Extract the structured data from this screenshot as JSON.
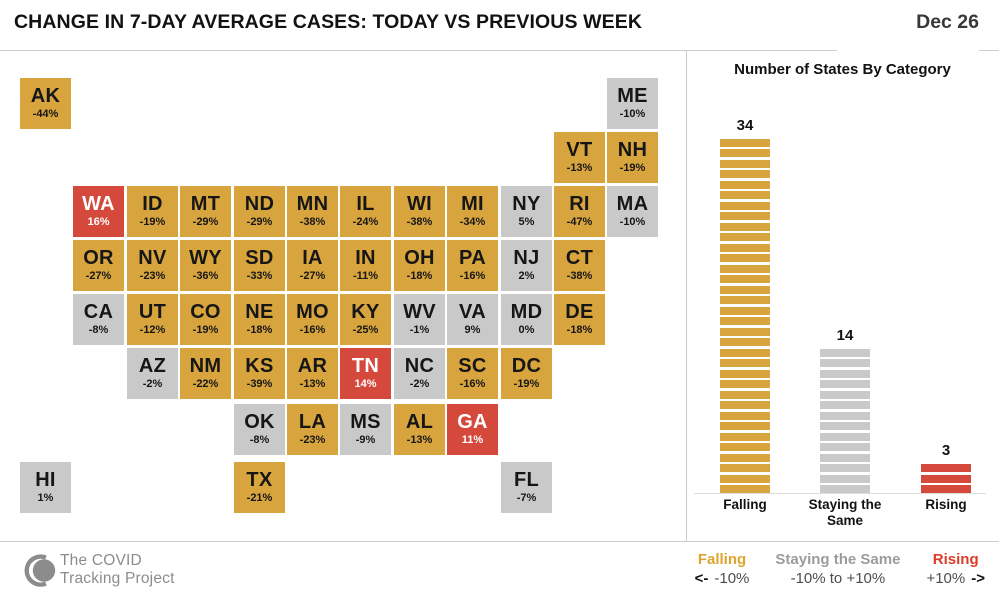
{
  "header": {
    "title": "CHANGE IN 7-DAY AVERAGE CASES: TODAY VS PREVIOUS WEEK",
    "date": "Dec 26"
  },
  "colors": {
    "falling": "#D8A43D",
    "same": "#C9C9C9",
    "rising": "#D5493C"
  },
  "chart_data": [
    {
      "type": "heatmap",
      "subtype": "us-state-tile-cartogram",
      "title": "CHANGE IN 7-DAY AVERAGE CASES: TODAY VS PREVIOUS WEEK",
      "date": "Dec 26",
      "value_meaning": "percent change in 7-day average cases vs previous week",
      "states": [
        {
          "abbr": "AK",
          "value": "-44%",
          "category": "falling",
          "row": 0,
          "col": 0
        },
        {
          "abbr": "ME",
          "value": "-10%",
          "category": "same",
          "row": 0,
          "col": 11
        },
        {
          "abbr": "VT",
          "value": "-13%",
          "category": "falling",
          "row": 1,
          "col": 10
        },
        {
          "abbr": "NH",
          "value": "-19%",
          "category": "falling",
          "row": 1,
          "col": 11
        },
        {
          "abbr": "WA",
          "value": "16%",
          "category": "rising",
          "row": 2,
          "col": 1
        },
        {
          "abbr": "ID",
          "value": "-19%",
          "category": "falling",
          "row": 2,
          "col": 2
        },
        {
          "abbr": "MT",
          "value": "-29%",
          "category": "falling",
          "row": 2,
          "col": 3
        },
        {
          "abbr": "ND",
          "value": "-29%",
          "category": "falling",
          "row": 2,
          "col": 4
        },
        {
          "abbr": "MN",
          "value": "-38%",
          "category": "falling",
          "row": 2,
          "col": 5
        },
        {
          "abbr": "IL",
          "value": "-24%",
          "category": "falling",
          "row": 2,
          "col": 6
        },
        {
          "abbr": "WI",
          "value": "-38%",
          "category": "falling",
          "row": 2,
          "col": 7
        },
        {
          "abbr": "MI",
          "value": "-34%",
          "category": "falling",
          "row": 2,
          "col": 8
        },
        {
          "abbr": "NY",
          "value": "5%",
          "category": "same",
          "row": 2,
          "col": 9
        },
        {
          "abbr": "RI",
          "value": "-47%",
          "category": "falling",
          "row": 2,
          "col": 10
        },
        {
          "abbr": "MA",
          "value": "-10%",
          "category": "same",
          "row": 2,
          "col": 11
        },
        {
          "abbr": "OR",
          "value": "-27%",
          "category": "falling",
          "row": 3,
          "col": 1
        },
        {
          "abbr": "NV",
          "value": "-23%",
          "category": "falling",
          "row": 3,
          "col": 2
        },
        {
          "abbr": "WY",
          "value": "-36%",
          "category": "falling",
          "row": 3,
          "col": 3
        },
        {
          "abbr": "SD",
          "value": "-33%",
          "category": "falling",
          "row": 3,
          "col": 4
        },
        {
          "abbr": "IA",
          "value": "-27%",
          "category": "falling",
          "row": 3,
          "col": 5
        },
        {
          "abbr": "IN",
          "value": "-11%",
          "category": "falling",
          "row": 3,
          "col": 6
        },
        {
          "abbr": "OH",
          "value": "-18%",
          "category": "falling",
          "row": 3,
          "col": 7
        },
        {
          "abbr": "PA",
          "value": "-16%",
          "category": "falling",
          "row": 3,
          "col": 8
        },
        {
          "abbr": "NJ",
          "value": "2%",
          "category": "same",
          "row": 3,
          "col": 9
        },
        {
          "abbr": "CT",
          "value": "-38%",
          "category": "falling",
          "row": 3,
          "col": 10
        },
        {
          "abbr": "CA",
          "value": "-8%",
          "category": "same",
          "row": 4,
          "col": 1
        },
        {
          "abbr": "UT",
          "value": "-12%",
          "category": "falling",
          "row": 4,
          "col": 2
        },
        {
          "abbr": "CO",
          "value": "-19%",
          "category": "falling",
          "row": 4,
          "col": 3
        },
        {
          "abbr": "NE",
          "value": "-18%",
          "category": "falling",
          "row": 4,
          "col": 4
        },
        {
          "abbr": "MO",
          "value": "-16%",
          "category": "falling",
          "row": 4,
          "col": 5
        },
        {
          "abbr": "KY",
          "value": "-25%",
          "category": "falling",
          "row": 4,
          "col": 6
        },
        {
          "abbr": "WV",
          "value": "-1%",
          "category": "same",
          "row": 4,
          "col": 7
        },
        {
          "abbr": "VA",
          "value": "9%",
          "category": "same",
          "row": 4,
          "col": 8
        },
        {
          "abbr": "MD",
          "value": "0%",
          "category": "same",
          "row": 4,
          "col": 9
        },
        {
          "abbr": "DE",
          "value": "-18%",
          "category": "falling",
          "row": 4,
          "col": 10
        },
        {
          "abbr": "AZ",
          "value": "-2%",
          "category": "same",
          "row": 5,
          "col": 2
        },
        {
          "abbr": "NM",
          "value": "-22%",
          "category": "falling",
          "row": 5,
          "col": 3
        },
        {
          "abbr": "KS",
          "value": "-39%",
          "category": "falling",
          "row": 5,
          "col": 4
        },
        {
          "abbr": "AR",
          "value": "-13%",
          "category": "falling",
          "row": 5,
          "col": 5
        },
        {
          "abbr": "TN",
          "value": "14%",
          "category": "rising",
          "row": 5,
          "col": 6
        },
        {
          "abbr": "NC",
          "value": "-2%",
          "category": "same",
          "row": 5,
          "col": 7
        },
        {
          "abbr": "SC",
          "value": "-16%",
          "category": "falling",
          "row": 5,
          "col": 8
        },
        {
          "abbr": "DC",
          "value": "-19%",
          "category": "falling",
          "row": 5,
          "col": 9
        },
        {
          "abbr": "OK",
          "value": "-8%",
          "category": "same",
          "row": 6,
          "col": 4
        },
        {
          "abbr": "LA",
          "value": "-23%",
          "category": "falling",
          "row": 6,
          "col": 5
        },
        {
          "abbr": "MS",
          "value": "-9%",
          "category": "same",
          "row": 6,
          "col": 6
        },
        {
          "abbr": "AL",
          "value": "-13%",
          "category": "falling",
          "row": 6,
          "col": 7
        },
        {
          "abbr": "GA",
          "value": "11%",
          "category": "rising",
          "row": 6,
          "col": 8
        },
        {
          "abbr": "HI",
          "value": "1%",
          "category": "same",
          "row": 7,
          "col": 0
        },
        {
          "abbr": "TX",
          "value": "-21%",
          "category": "falling",
          "row": 7,
          "col": 4
        },
        {
          "abbr": "FL",
          "value": "-7%",
          "category": "same",
          "row": 7,
          "col": 9
        }
      ]
    },
    {
      "type": "bar",
      "title": "Number of States By Category",
      "categories": [
        "Falling",
        "Staying the Same",
        "Rising"
      ],
      "values": [
        34,
        14,
        3
      ],
      "color_keys": [
        "falling",
        "same",
        "rising"
      ],
      "bar_style": "unit-striped",
      "ylim": [
        0,
        34
      ],
      "grid": false,
      "legend_position": "none"
    }
  ],
  "legend": {
    "items": [
      {
        "label": "Falling",
        "prefix": "<-",
        "range": "-10%"
      },
      {
        "label": "Staying the Same",
        "range": "-10% to +10%"
      },
      {
        "label": "Rising",
        "range": "+10%",
        "suffix": "->"
      }
    ]
  },
  "footer": {
    "brand_line1": "The COVID",
    "brand_line2": "Tracking Project"
  }
}
